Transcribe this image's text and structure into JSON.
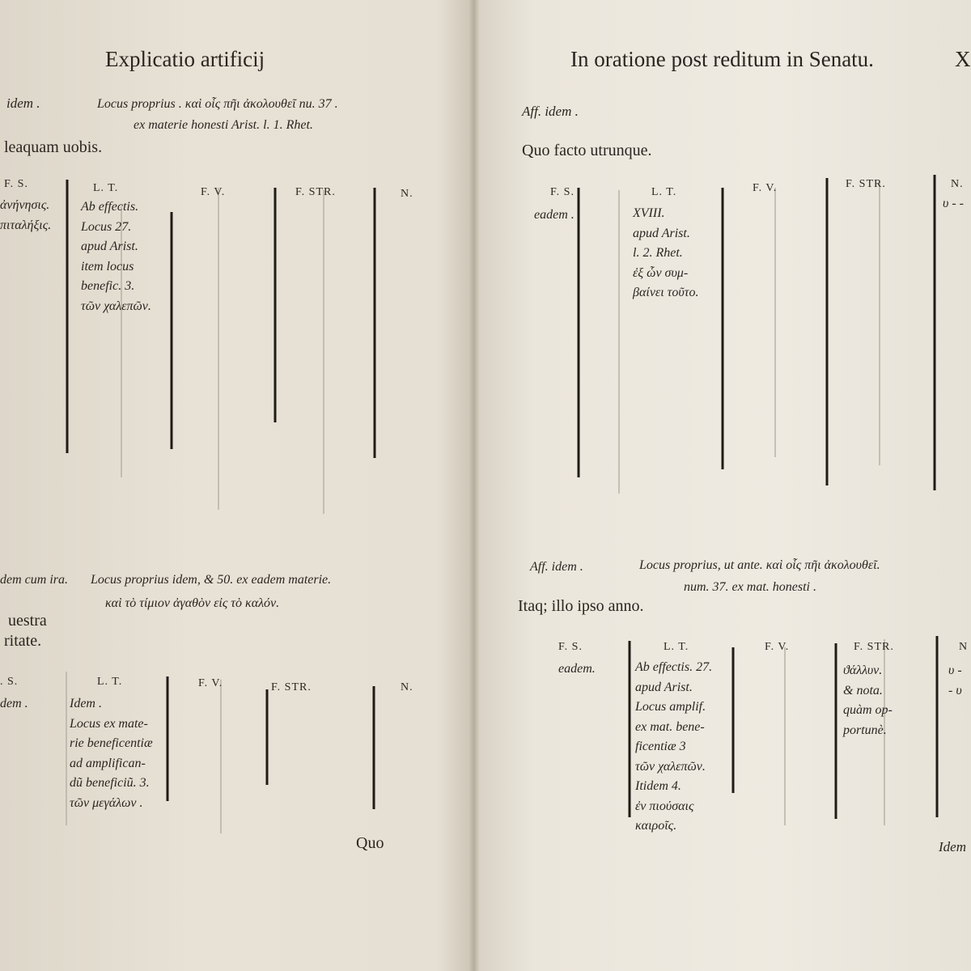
{
  "left_page": {
    "running_head": "Explicatio artificij",
    "section_1": {
      "affection": "idem .",
      "locus": [
        "Locus proprius . καὶ οἷς πῆι ἀκολουθεῖ nu. 37 .",
        "ex materie honesti Arist. l. 1. Rhet."
      ],
      "text": "leaquam uobis.",
      "table": {
        "headers": [
          "F. S.",
          "L. T.",
          "F. V.",
          "F. STR.",
          "N."
        ],
        "fs": [
          "ἀνήνησις.",
          "πιταλήξις."
        ],
        "lt": [
          "Ab effectis.",
          "Locus 27.",
          "apud Arist.",
          "item locus",
          "benefic. 3.",
          "τῶν χαλεπῶν."
        ]
      }
    },
    "section_2": {
      "affection": "dem cum ira.",
      "locus": [
        "Locus proprius idem, & 50. ex eadem materie.",
        "καὶ τὸ τίμιον ἀγαθὸν εἰς τὸ καλόν."
      ],
      "text": [
        "uestra",
        "ritate."
      ],
      "table": {
        "headers": [
          ". S.",
          "L. T.",
          "F. V.",
          "F. STR.",
          "N."
        ],
        "fs": [
          "dem ."
        ],
        "lt": [
          "Idem .",
          "Locus ex mate-",
          "rie beneficentiæ",
          "ad amplifican-",
          "dũ beneficiũ. 3.",
          "τῶν μεγάλων ."
        ]
      }
    },
    "catchword": "Quo"
  },
  "right_page": {
    "running_head": "In oratione post reditum in Senatu.",
    "folio": "X",
    "section_1": {
      "affection": "Aff. idem .",
      "text": "Quo facto utrunque.",
      "table": {
        "headers": [
          "F. S.",
          "L. T.",
          "F. V.",
          "F. STR.",
          "N."
        ],
        "fs": [
          "eadem ."
        ],
        "lt": [
          "XVIII.",
          "apud Arist.",
          "l. 2. Rhet.",
          "ἐξ ὧν συμ-",
          "βαίνει τοῦτο."
        ],
        "n": [
          "υ - -"
        ]
      }
    },
    "section_2": {
      "affection": "Aff. idem .",
      "locus": [
        "Locus proprius, ut ante. καὶ οἷς πῆι ἀκολουθεῖ.",
        "num. 37. ex mat. honesti ."
      ],
      "text": "Itaq; illo ipso anno.",
      "table": {
        "headers": [
          "F. S.",
          "L. T.",
          "F. V.",
          "F. STR.",
          "N"
        ],
        "fs": [
          "eadem."
        ],
        "lt": [
          "Ab effectis. 27.",
          "apud Arist.",
          "Locus amplif.",
          "ex mat. bene-",
          "ficentiæ 3",
          "τῶν χαλεπῶν.",
          "Itidem 4.",
          "ἐν πιούσαις",
          "καιροῖς."
        ],
        "fstr": [
          "ϑάλλυν.",
          "& nota.",
          "quàm op-",
          "portunè."
        ],
        "n": [
          "υ -",
          "- υ"
        ]
      }
    },
    "catchword": "Idem"
  }
}
